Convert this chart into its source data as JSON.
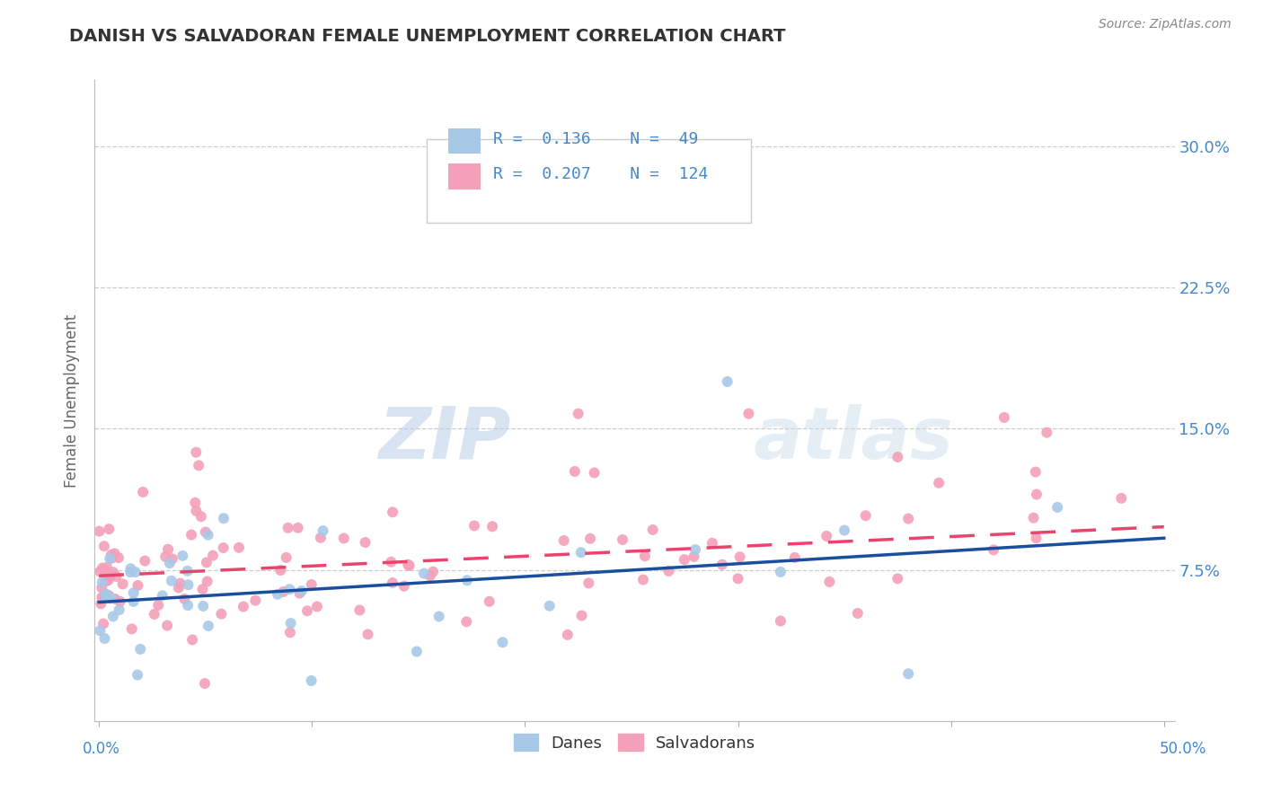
{
  "title": "DANISH VS SALVADORAN FEMALE UNEMPLOYMENT CORRELATION CHART",
  "source_text": "Source: ZipAtlas.com",
  "ylabel": "Female Unemployment",
  "ytick_labels": [
    "30.0%",
    "22.5%",
    "15.0%",
    "7.5%"
  ],
  "ytick_values": [
    0.3,
    0.225,
    0.15,
    0.075
  ],
  "xlim": [
    0.0,
    0.5
  ],
  "ylim": [
    0.0,
    0.33
  ],
  "danes_color": "#a8c8e8",
  "salvadorans_color": "#f4a0b8",
  "danes_line_color": "#1a4fa0",
  "salvadorans_line_color": "#e8446e",
  "danes_R": 0.136,
  "danes_N": 49,
  "salvadorans_R": 0.207,
  "salvadorans_N": 124,
  "watermark_zip": "ZIP",
  "watermark_atlas": "atlas",
  "background_color": "#ffffff",
  "grid_color": "#cccccc",
  "title_color": "#333333",
  "axis_label_color": "#666666",
  "tick_label_color": "#4488cc",
  "source_color": "#888888",
  "legend_edge_color": "#cccccc",
  "danes_line_start_y": 0.058,
  "danes_line_end_y": 0.092,
  "salvadorans_line_start_y": 0.072,
  "salvadorans_line_end_y": 0.098
}
